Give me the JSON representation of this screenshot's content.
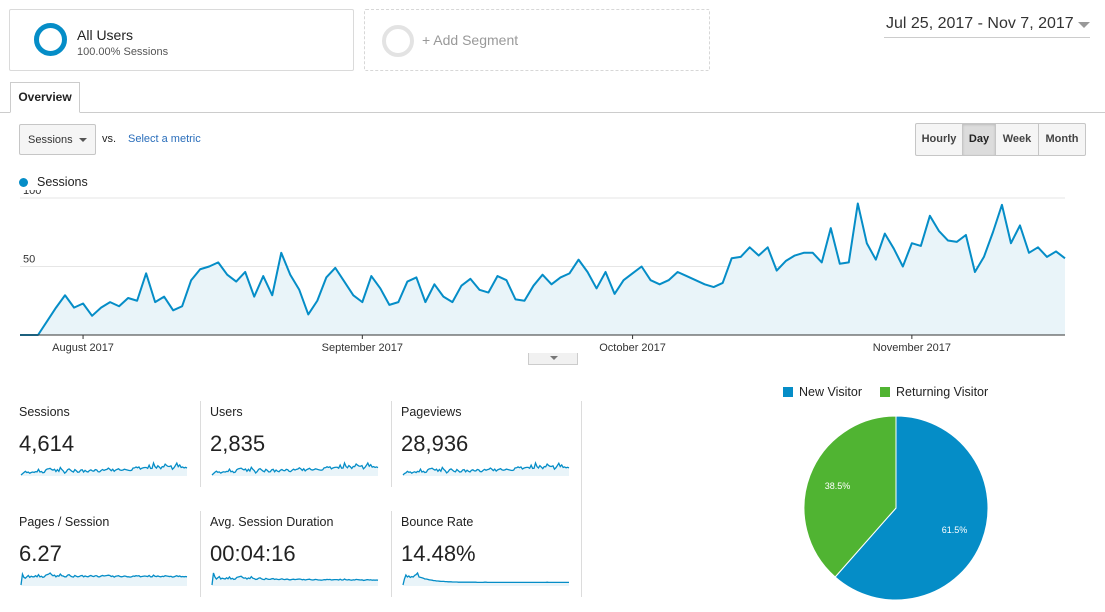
{
  "segments": {
    "active": {
      "title": "All Users",
      "subtitle": "100.00% Sessions",
      "color": "#058dc7"
    },
    "add_label": "+ Add Segment"
  },
  "date_range": "Jul 25, 2017 - Nov 7, 2017",
  "tabs": [
    {
      "label": "Overview",
      "active": true
    }
  ],
  "metric_selector": {
    "selected": "Sessions",
    "vs_label": "vs.",
    "select_metric_link": "Select a metric"
  },
  "granularity": [
    {
      "label": "Hourly",
      "active": false
    },
    {
      "label": "Day",
      "active": true
    },
    {
      "label": "Week",
      "active": false
    },
    {
      "label": "Month",
      "active": false
    }
  ],
  "legend": {
    "series": "Sessions",
    "color": "#058dc7"
  },
  "chart_data": [
    {
      "type": "area",
      "series": [
        {
          "name": "Sessions",
          "values": [
            0,
            0,
            0,
            10,
            20,
            29,
            20,
            23,
            14,
            20,
            24,
            21,
            27,
            25,
            45,
            24,
            28,
            18,
            21,
            40,
            48,
            50,
            53,
            44,
            39,
            46,
            28,
            43,
            29,
            60,
            44,
            33,
            15,
            25,
            42,
            49,
            39,
            29,
            24,
            43,
            34,
            22,
            24,
            39,
            42,
            24,
            37,
            28,
            24,
            36,
            41,
            33,
            31,
            43,
            40,
            26,
            25,
            36,
            44,
            37,
            42,
            45,
            55,
            46,
            34,
            46,
            30,
            40,
            45,
            50,
            40,
            37,
            40,
            46,
            43,
            40,
            37,
            35,
            38,
            56,
            57,
            64,
            58,
            64,
            47,
            54,
            58,
            60,
            60,
            53,
            78,
            52,
            53,
            96,
            67,
            55,
            74,
            63,
            50,
            67,
            65,
            87,
            76,
            69,
            68,
            73,
            46,
            57,
            75,
            95,
            67,
            80,
            60,
            64,
            57,
            61,
            56
          ],
          "color": "#058dc7"
        }
      ],
      "x_tick_labels": [
        "August 2017",
        "September 2017",
        "October 2017",
        "November 2017"
      ],
      "y_tick_labels": [
        "100",
        "50"
      ],
      "ylim": [
        0,
        100
      ],
      "grid": true
    },
    {
      "type": "pie",
      "categories": [
        "New Visitor",
        "Returning Visitor"
      ],
      "values": [
        61.5,
        38.5
      ],
      "labels": [
        "61.5%",
        "38.5%"
      ],
      "colors": [
        "#058dc7",
        "#50b432"
      ],
      "legend": "top"
    }
  ],
  "scorecards": [
    {
      "label": "Sessions",
      "value": "4,614",
      "spark": [
        0,
        10,
        20,
        29,
        20,
        23,
        14,
        20,
        24,
        21,
        27,
        25,
        45,
        24,
        28,
        18,
        21,
        40,
        48,
        50,
        53,
        44,
        39,
        46,
        28,
        43,
        29,
        60,
        44,
        33,
        15,
        25,
        42,
        49,
        39,
        29,
        24,
        43,
        34,
        22,
        24,
        39,
        42,
        24,
        37,
        28,
        24,
        36,
        41,
        33,
        31,
        43,
        40,
        26,
        25,
        36,
        44,
        37,
        42,
        45,
        55,
        46,
        34,
        46,
        30,
        40,
        45,
        50,
        40,
        37,
        40,
        46,
        43,
        40,
        37,
        35,
        38,
        56,
        57,
        64,
        58,
        64,
        47,
        54,
        58,
        60,
        60,
        53,
        78,
        52,
        53,
        96,
        67,
        55,
        74,
        63,
        50,
        67,
        65,
        87,
        76,
        69,
        68,
        73,
        46,
        57,
        75,
        95,
        67,
        80,
        60,
        64,
        57,
        61,
        56
      ]
    },
    {
      "label": "Users",
      "value": "2,835",
      "spark": [
        0,
        8,
        16,
        22,
        16,
        18,
        11,
        16,
        19,
        17,
        21,
        20,
        34,
        19,
        22,
        14,
        17,
        31,
        36,
        38,
        40,
        34,
        30,
        35,
        22,
        33,
        23,
        45,
        34,
        26,
        12,
        20,
        33,
        37,
        30,
        23,
        19,
        33,
        27,
        18,
        19,
        30,
        33,
        19,
        29,
        22,
        19,
        28,
        32,
        26,
        25,
        33,
        31,
        21,
        20,
        28,
        34,
        29,
        33,
        35,
        42,
        36,
        27,
        36,
        24,
        31,
        35,
        39,
        31,
        29,
        31,
        36,
        34,
        31,
        29,
        28,
        30,
        42,
        43,
        48,
        44,
        48,
        36,
        41,
        44,
        45,
        45,
        40,
        58,
        40,
        41,
        70,
        50,
        42,
        55,
        48,
        38,
        50,
        49,
        64,
        57,
        52,
        51,
        55,
        36,
        44,
        56,
        70,
        51,
        60,
        46,
        49,
        44,
        47,
        43
      ]
    },
    {
      "label": "Pageviews",
      "value": "28,936",
      "spark": [
        0,
        12,
        18,
        30,
        22,
        25,
        15,
        22,
        26,
        20,
        30,
        26,
        48,
        24,
        30,
        20,
        23,
        42,
        50,
        52,
        55,
        46,
        40,
        48,
        30,
        45,
        31,
        62,
        46,
        35,
        17,
        27,
        44,
        50,
        40,
        30,
        26,
        45,
        35,
        24,
        26,
        41,
        44,
        26,
        39,
        30,
        25,
        38,
        43,
        34,
        33,
        45,
        42,
        28,
        27,
        38,
        46,
        39,
        44,
        47,
        57,
        48,
        36,
        48,
        32,
        42,
        47,
        52,
        42,
        39,
        42,
        48,
        45,
        42,
        39,
        37,
        40,
        58,
        59,
        66,
        60,
        66,
        49,
        56,
        60,
        62,
        62,
        55,
        80,
        54,
        55,
        98,
        69,
        57,
        76,
        65,
        52,
        69,
        67,
        89,
        78,
        71,
        70,
        75,
        48,
        59,
        77,
        96,
        69,
        82,
        62,
        66,
        59,
        63,
        58
      ]
    },
    {
      "label": "Pages / Session",
      "value": "6.27",
      "spark": [
        0,
        40,
        28,
        25,
        30,
        35,
        28,
        32,
        30,
        30,
        34,
        30,
        38,
        30,
        32,
        28,
        30,
        36,
        38,
        40,
        44,
        38,
        34,
        36,
        30,
        34,
        32,
        40,
        34,
        33,
        30,
        30,
        36,
        38,
        33,
        30,
        29,
        35,
        32,
        30,
        31,
        34,
        35,
        30,
        33,
        31,
        30,
        33,
        35,
        32,
        31,
        34,
        34,
        30,
        30,
        33,
        35,
        33,
        34,
        35,
        36,
        35,
        31,
        33,
        29,
        32,
        33,
        34,
        31,
        30,
        31,
        33,
        32,
        30,
        30,
        29,
        30,
        33,
        32,
        34,
        33,
        34,
        30,
        31,
        32,
        33,
        32,
        31,
        35,
        30,
        30,
        36,
        32,
        31,
        33,
        31,
        30,
        32,
        31,
        34,
        33,
        32,
        31,
        32,
        29,
        30,
        32,
        34,
        31,
        33,
        30,
        31,
        30,
        31,
        30
      ]
    },
    {
      "label": "Avg. Session Duration",
      "value": "00:04:16",
      "spark": [
        0,
        60,
        40,
        30,
        36,
        42,
        30,
        34,
        32,
        30,
        36,
        31,
        40,
        30,
        33,
        28,
        30,
        38,
        40,
        42,
        44,
        38,
        34,
        36,
        30,
        35,
        32,
        42,
        34,
        32,
        28,
        29,
        34,
        36,
        31,
        28,
        27,
        33,
        30,
        28,
        28,
        31,
        32,
        28,
        30,
        28,
        27,
        29,
        31,
        28,
        27,
        29,
        29,
        26,
        26,
        28,
        29,
        27,
        28,
        29,
        30,
        29,
        26,
        28,
        25,
        27,
        28,
        29,
        26,
        25,
        26,
        28,
        27,
        25,
        25,
        24,
        25,
        27,
        26,
        28,
        27,
        28,
        25,
        26,
        27,
        27,
        27,
        25,
        29,
        25,
        25,
        30,
        26,
        25,
        27,
        25,
        24,
        26,
        25,
        28,
        27,
        26,
        25,
        26,
        23,
        24,
        26,
        27,
        25,
        26,
        24,
        25,
        24,
        25,
        24
      ]
    },
    {
      "label": "Bounce Rate",
      "value": "14.48%",
      "spark": [
        0,
        30,
        50,
        40,
        45,
        38,
        42,
        40,
        48,
        52,
        60,
        40,
        38,
        36,
        34,
        30,
        30,
        28,
        26,
        25,
        24,
        22,
        22,
        20,
        20,
        19,
        18,
        18,
        18,
        17,
        17,
        16,
        16,
        16,
        15,
        15,
        15,
        15,
        14,
        14,
        14,
        14,
        14,
        14,
        14,
        14,
        14,
        14,
        14,
        14,
        14,
        13,
        13,
        13,
        13,
        13,
        14,
        14,
        13,
        13,
        13,
        13,
        13,
        13,
        13,
        13,
        13,
        13,
        13,
        13,
        13,
        13,
        13,
        13,
        13,
        13,
        13,
        13,
        13,
        13,
        13,
        13,
        13,
        13,
        13,
        13,
        13,
        13,
        13,
        13,
        13,
        13,
        13,
        13,
        13,
        13,
        13,
        13,
        13,
        14,
        13,
        13,
        13,
        13,
        13,
        13,
        13,
        13,
        13,
        13,
        13,
        13,
        13,
        13,
        13
      ]
    }
  ]
}
